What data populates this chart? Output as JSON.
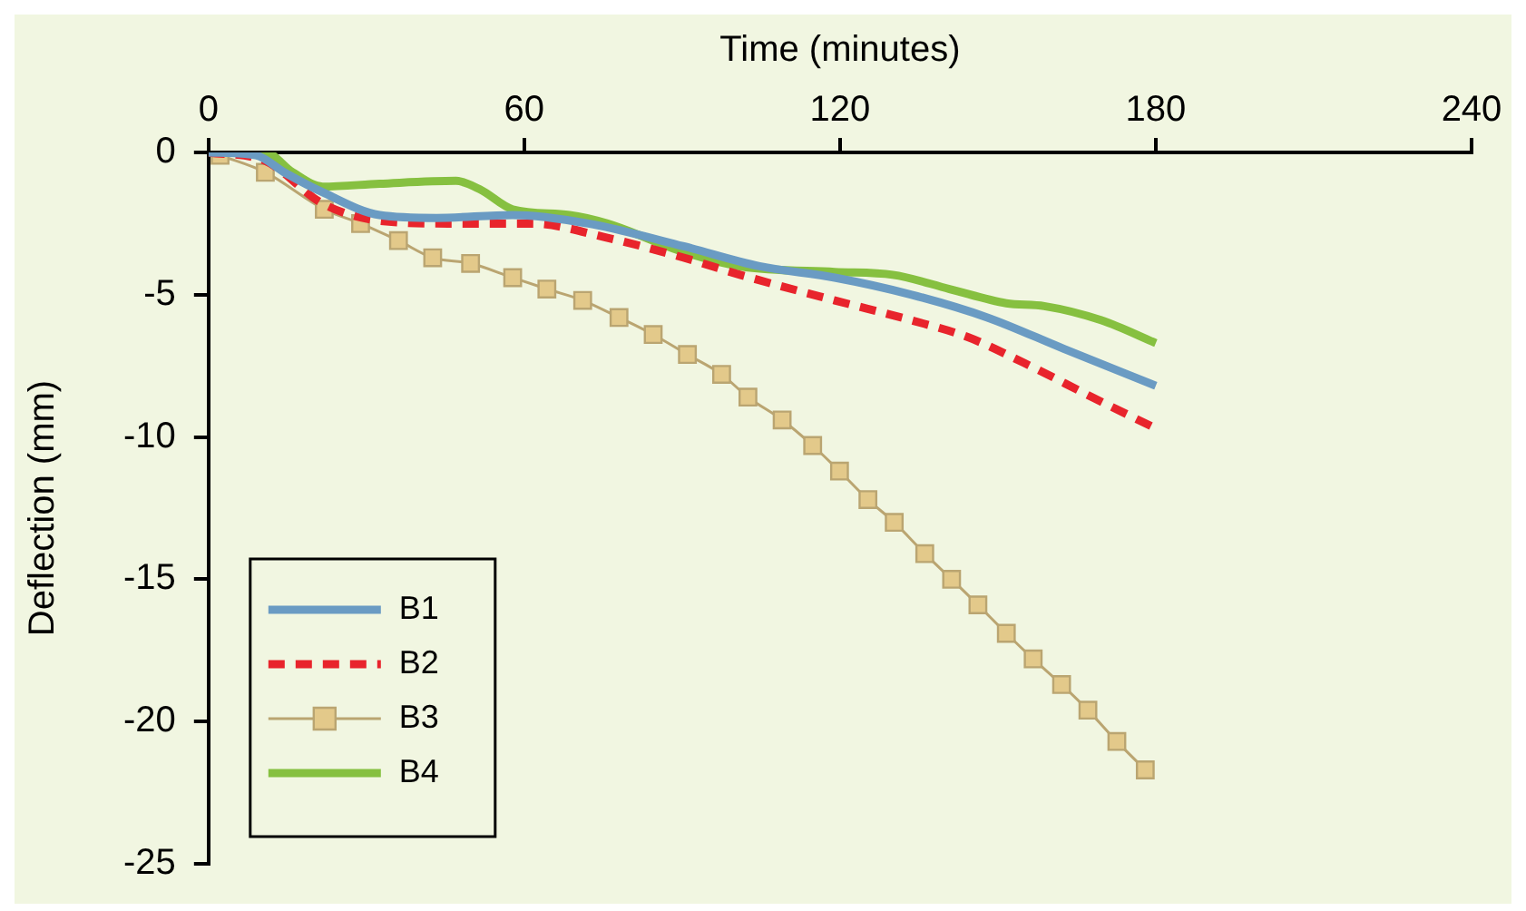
{
  "chart_data": {
    "type": "line",
    "xlabel": "Time (minutes)",
    "ylabel": "Deflection (mm)",
    "xlim": [
      0,
      240
    ],
    "xticks": [
      0,
      60,
      120,
      180,
      240
    ],
    "ylim": [
      -25,
      0
    ],
    "yticks": [
      -25,
      -20,
      -15,
      -10,
      -5,
      0
    ],
    "grid": false,
    "legend": "bottom left",
    "series": [
      {
        "name": "B1",
        "color": "#6a9bc3",
        "marker": "none",
        "line_style": "solid",
        "x": [
          0,
          9,
          14.4,
          21.7,
          32.5,
          43.3,
          57.8,
          72.2,
          90.3,
          104.7,
          119,
          133.6,
          148,
          162.5,
          180
        ],
        "values": [
          0,
          -0.1,
          -0.7,
          -1.4,
          -2.2,
          -2.3,
          -2.2,
          -2.5,
          -3.3,
          -4.0,
          -4.4,
          -5.0,
          -5.8,
          -6.9,
          -8.2
        ]
      },
      {
        "name": "B2",
        "color": "#e8242c",
        "marker": "none",
        "line_style": "dashed",
        "x": [
          0,
          10.8,
          21.7,
          32.5,
          47,
          61.4,
          75.8,
          90.3,
          101,
          119,
          133.6,
          144.4,
          155,
          167.9,
          180
        ],
        "values": [
          0,
          -0.3,
          -1.8,
          -2.4,
          -2.5,
          -2.5,
          -3.0,
          -3.7,
          -4.3,
          -5.2,
          -5.9,
          -6.5,
          -7.4,
          -8.6,
          -9.7
        ]
      },
      {
        "name": "B3",
        "color": "#e3c98a",
        "marker": "square",
        "line_style": "solid",
        "x": [
          2.2,
          10.8,
          22,
          28.9,
          36.1,
          42.6,
          49.8,
          57.8,
          64.3,
          71.1,
          78,
          84.5,
          91,
          97.5,
          102.5,
          109,
          114.8,
          119.9,
          125.3,
          130.3,
          136.1,
          141.2,
          146.2,
          151.6,
          156.7,
          162.1,
          167.1,
          172.6,
          178
        ],
        "values": [
          -0.1,
          -0.7,
          -2.0,
          -2.5,
          -3.1,
          -3.7,
          -3.9,
          -4.4,
          -4.8,
          -5.2,
          -5.8,
          -6.4,
          -7.1,
          -7.8,
          -8.6,
          -9.4,
          -10.3,
          -11.2,
          -12.2,
          -13.0,
          -14.1,
          -15.0,
          -15.9,
          -16.9,
          -17.8,
          -18.7,
          -19.6,
          -20.7,
          -21.7
        ]
      },
      {
        "name": "B4",
        "color": "#86c040",
        "marker": "none",
        "line_style": "solid",
        "x": [
          0,
          10.8,
          16,
          21.7,
          32.5,
          47,
          51.6,
          57.8,
          68.6,
          75.8,
          90.3,
          101,
          119,
          130,
          140.8,
          151.6,
          158.8,
          169.7,
          180
        ],
        "values": [
          0,
          0,
          -0.7,
          -1.2,
          -1.1,
          -1.0,
          -1.3,
          -2.0,
          -2.2,
          -2.5,
          -3.5,
          -4.0,
          -4.2,
          -4.3,
          -4.8,
          -5.3,
          -5.4,
          -5.9,
          -6.7
        ]
      }
    ]
  }
}
